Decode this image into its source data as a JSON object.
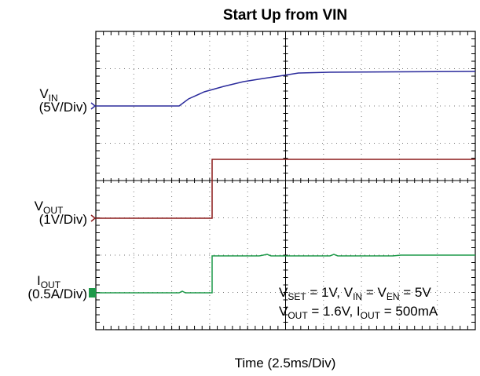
{
  "title": "Start Up from VIN",
  "channels": [
    {
      "name": [
        {
          "t": "V"
        },
        {
          "t": "IN",
          "sub": true
        }
      ],
      "scale": "(5V/Div)",
      "color": "#2b2b9c"
    },
    {
      "name": [
        {
          "t": "V"
        },
        {
          "t": "OUT",
          "sub": true
        }
      ],
      "scale": "(1V/Div)",
      "color": "#8b1a1a"
    },
    {
      "name": [
        {
          "t": "I"
        },
        {
          "t": "OUT",
          "sub": true
        }
      ],
      "scale": "(0.5A/Div)",
      "color": "#1e9a4a"
    }
  ],
  "annotation": [
    [
      {
        "t": "V"
      },
      {
        "t": "SET",
        "sub": true
      },
      {
        "t": " = 1V, V"
      },
      {
        "t": "IN",
        "sub": true
      },
      {
        "t": " = V"
      },
      {
        "t": "EN",
        "sub": true
      },
      {
        "t": " = 5V"
      }
    ],
    [
      {
        "t": "V"
      },
      {
        "t": "OUT",
        "sub": true
      },
      {
        "t": " = 1.6V, I"
      },
      {
        "t": "OUT",
        "sub": true
      },
      {
        "t": " = 500mA"
      }
    ]
  ],
  "x_label": "Time (2.5ms/Div)"
}
